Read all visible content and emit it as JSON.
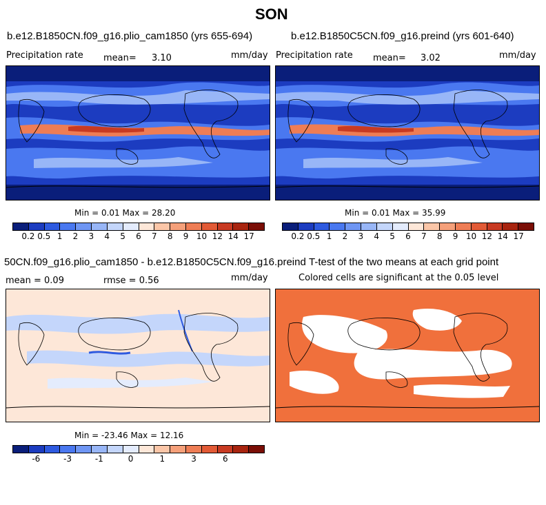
{
  "title": "SON",
  "panels": {
    "tl": {
      "title": "b.e12.B1850CN.f09_g16.plio_cam1850 (yrs 655-694)",
      "variable": "Precipitation rate",
      "mean_label": "mean=",
      "mean_value": "3.10",
      "units": "mm/day",
      "minmax": "Min =   0.01 Max =  28.20"
    },
    "tr": {
      "title": "b.e12.B1850C5CN.f09_g16.preind (yrs 601-640)",
      "variable": "Precipitation rate",
      "mean_label": "mean=",
      "mean_value": "3.02",
      "units": "mm/day",
      "minmax": "Min =   0.01 Max =  35.99"
    },
    "bl": {
      "title": "50CN.f09_g16.plio_cam1850 - b.e12.B1850C5CN.f09_g16.preind",
      "mean_text": "mean =   0.09",
      "rmse_text": "rmse =   0.56",
      "units": "mm/day",
      "minmax": "Min = -23.46 Max =  12.16"
    },
    "br": {
      "title": "T-test of the two means at each grid point",
      "subtitle": "Colored cells are significant at the 0.05 level"
    }
  },
  "colorbar_precip": {
    "colors": [
      "#0a1e7a",
      "#1c3cc0",
      "#2e5ae0",
      "#4a78f0",
      "#6f96f4",
      "#98b6f7",
      "#c4d6fb",
      "#e4ecfd",
      "#fde7d8",
      "#fbc6a8",
      "#f5a07a",
      "#ee7d55",
      "#e25a36",
      "#c83a22",
      "#a8240f",
      "#7a0e06"
    ],
    "labels": [
      "0.2",
      "0.5",
      "1",
      "2",
      "3",
      "4",
      "5",
      "6",
      "7",
      "8",
      "9",
      "10",
      "12",
      "14",
      "17"
    ]
  },
  "colorbar_diff": {
    "colors": [
      "#0a1e7a",
      "#1c3cc0",
      "#2e5ae0",
      "#4a78f0",
      "#6f96f4",
      "#98b6f7",
      "#c4d6fb",
      "#e4ecfd",
      "#fde7d8",
      "#fbc6a8",
      "#f5a07a",
      "#ee7d55",
      "#e25a36",
      "#c83a22",
      "#a8240f",
      "#7a0e06"
    ],
    "labels": [
      "-6",
      "-3",
      "-1",
      "0",
      "1",
      "3",
      "6"
    ],
    "label_positions": [
      1.5,
      3.5,
      5.5,
      7.5,
      9.5,
      11.5,
      13.5
    ]
  },
  "map_colors": {
    "ocean_dry": "#1c3cc0",
    "ocean_mid": "#4a78f0",
    "wet": "#98b6f7",
    "itcz": "#ee7d55",
    "itcz_core": "#c83a22",
    "polar": "#0a1e7a",
    "diff_bg": "#fde7d8",
    "diff_blue": "#c4d6fb",
    "sig": "#f0703c"
  }
}
